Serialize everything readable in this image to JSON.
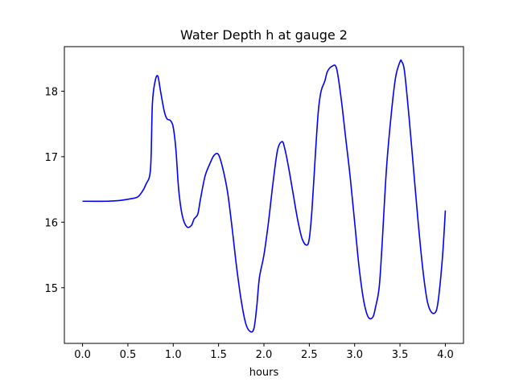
{
  "chart_data": {
    "type": "line",
    "title": "Water Depth h at gauge 2",
    "xlabel": "hours",
    "ylabel": "",
    "xlim": [
      -0.2,
      4.2
    ],
    "ylim": [
      14.15,
      18.68
    ],
    "xticks": [
      0.0,
      0.5,
      1.0,
      1.5,
      2.0,
      2.5,
      3.0,
      3.5,
      4.0
    ],
    "xtick_labels": [
      "0.0",
      "0.5",
      "1.0",
      "1.5",
      "2.0",
      "2.5",
      "3.0",
      "3.5",
      "4.0"
    ],
    "yticks": [
      15,
      16,
      17,
      18
    ],
    "ytick_labels": [
      "15",
      "16",
      "17",
      "18"
    ],
    "grid": false,
    "line_color": "#0000ff",
    "series": [
      {
        "x": [
          0.0,
          0.25,
          0.4,
          0.5,
          0.6,
          0.65,
          0.7,
          0.75,
          0.77,
          0.8,
          0.83,
          0.86,
          0.9,
          0.93,
          0.97,
          1.0,
          1.03,
          1.06,
          1.1,
          1.15,
          1.2,
          1.23,
          1.27,
          1.3,
          1.35,
          1.4,
          1.45,
          1.5,
          1.55,
          1.6,
          1.65,
          1.7,
          1.75,
          1.8,
          1.85,
          1.89,
          1.92,
          1.95,
          2.0,
          2.05,
          2.1,
          2.15,
          2.2,
          2.23,
          2.27,
          2.32,
          2.37,
          2.42,
          2.47,
          2.5,
          2.53,
          2.57,
          2.6,
          2.63,
          2.67,
          2.7,
          2.75,
          2.8,
          2.85,
          2.9,
          2.95,
          3.0,
          3.05,
          3.1,
          3.15,
          3.2,
          3.23,
          3.27,
          3.3,
          3.35,
          3.4,
          3.45,
          3.5,
          3.52,
          3.55,
          3.6,
          3.65,
          3.7,
          3.75,
          3.8,
          3.85,
          3.9,
          3.93,
          3.97,
          4.0
        ],
        "y": [
          16.32,
          16.32,
          16.33,
          16.35,
          16.38,
          16.45,
          16.58,
          16.82,
          17.8,
          18.15,
          18.23,
          18.0,
          17.7,
          17.58,
          17.55,
          17.45,
          17.1,
          16.5,
          16.1,
          15.93,
          15.95,
          16.05,
          16.12,
          16.35,
          16.7,
          16.88,
          17.02,
          17.03,
          16.8,
          16.45,
          15.9,
          15.3,
          14.8,
          14.45,
          14.33,
          14.38,
          14.7,
          15.15,
          15.5,
          16.0,
          16.6,
          17.1,
          17.23,
          17.12,
          16.85,
          16.45,
          16.05,
          15.75,
          15.65,
          15.75,
          16.2,
          17.1,
          17.7,
          18.0,
          18.15,
          18.3,
          18.38,
          18.35,
          17.9,
          17.3,
          16.7,
          16.0,
          15.3,
          14.8,
          14.55,
          14.55,
          14.7,
          15.0,
          15.6,
          16.8,
          17.6,
          18.2,
          18.45,
          18.45,
          18.3,
          17.6,
          16.8,
          16.0,
          15.3,
          14.8,
          14.62,
          14.65,
          14.9,
          15.5,
          16.18
        ]
      }
    ]
  }
}
